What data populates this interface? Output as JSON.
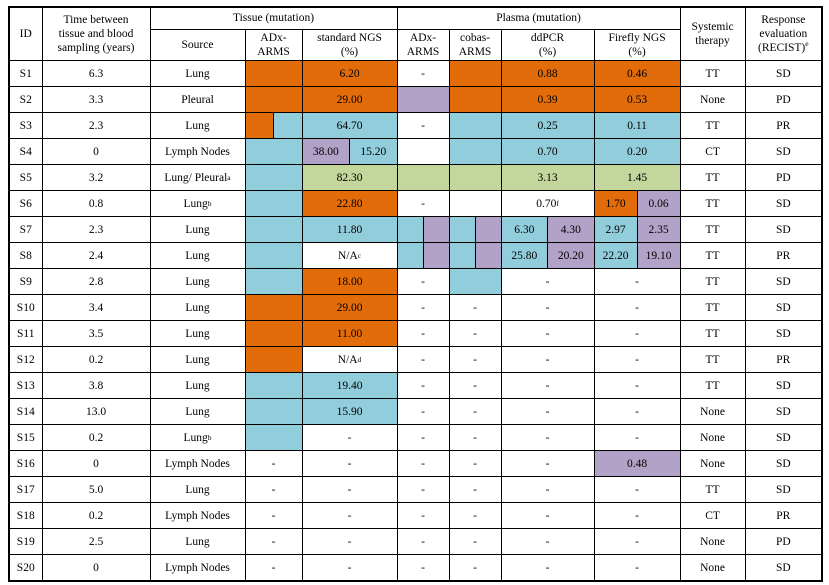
{
  "colors": {
    "orange": "#E36C0A",
    "blue": "#92CDDC",
    "purple": "#B2A2C7",
    "green": "#C3D69B",
    "white": "#FFFFFF"
  },
  "header": {
    "id": "ID",
    "time": "Time between\ntissue and blood\nsampling (years)",
    "tissue_group": "Tissue (mutation)",
    "plasma_group": "Plasma (mutation)",
    "source": "Source",
    "tissue_adx": "ADx-\nARMS",
    "std_ngs": "standard NGS\n(%)",
    "plasma_adx": "ADx-\nARMS",
    "cobas": "cobas-\nARMS",
    "ddpcr": "ddPCR\n(%)",
    "firefly": "Firefly NGS\n(%)",
    "therapy": "Systemic\ntherapy",
    "response": "Response\nevaluation\n(RECIST)^e"
  },
  "rows": [
    {
      "id": "S1",
      "time": "6.3",
      "source": "Lung",
      "tissue_adx": [
        {
          "t": "",
          "c": "orange"
        }
      ],
      "std_ngs": [
        {
          "t": "6.20",
          "c": "orange"
        }
      ],
      "p_adx": [
        {
          "t": "-",
          "c": "white"
        }
      ],
      "cobas": [
        {
          "t": "",
          "c": "orange"
        }
      ],
      "ddpcr": [
        {
          "t": "0.88",
          "c": "orange"
        }
      ],
      "firefly": [
        {
          "t": "0.46",
          "c": "orange"
        }
      ],
      "therapy": "TT",
      "response": "SD"
    },
    {
      "id": "S2",
      "time": "3.3",
      "source": "Pleural",
      "tissue_adx": [
        {
          "t": "",
          "c": "orange"
        }
      ],
      "std_ngs": [
        {
          "t": "29.00",
          "c": "orange"
        }
      ],
      "p_adx": [
        {
          "t": "",
          "c": "purple"
        }
      ],
      "cobas": [
        {
          "t": "",
          "c": "orange"
        }
      ],
      "ddpcr": [
        {
          "t": "0.39",
          "c": "orange"
        }
      ],
      "firefly": [
        {
          "t": "0.53",
          "c": "orange"
        }
      ],
      "therapy": "None",
      "response": "PD"
    },
    {
      "id": "S3",
      "time": "2.3",
      "source": "Lung",
      "tissue_adx": [
        {
          "t": "",
          "c": "orange"
        },
        {
          "t": "",
          "c": "blue"
        }
      ],
      "std_ngs": [
        {
          "t": "64.70",
          "c": "blue"
        }
      ],
      "p_adx": [
        {
          "t": "-",
          "c": "white"
        }
      ],
      "cobas": [
        {
          "t": "",
          "c": "blue"
        }
      ],
      "ddpcr": [
        {
          "t": "0.25",
          "c": "blue"
        }
      ],
      "firefly": [
        {
          "t": "0.11",
          "c": "blue"
        }
      ],
      "therapy": "TT",
      "response": "PR"
    },
    {
      "id": "S4",
      "time": "0",
      "source": "Lymph Nodes",
      "tissue_adx": [
        {
          "t": "",
          "c": "blue"
        }
      ],
      "std_ngs": [
        {
          "t": "38.00",
          "c": "purple"
        },
        {
          "t": "15.20",
          "c": "blue"
        }
      ],
      "p_adx": [
        {
          "t": "",
          "c": "white"
        }
      ],
      "cobas": [
        {
          "t": "",
          "c": "blue"
        }
      ],
      "ddpcr": [
        {
          "t": "0.70",
          "c": "blue"
        }
      ],
      "firefly": [
        {
          "t": "0.20",
          "c": "blue"
        }
      ],
      "therapy": "CT",
      "response": "SD"
    },
    {
      "id": "S5",
      "time": "3.2",
      "source": "Lung/ Pleural^a",
      "tissue_adx": [
        {
          "t": "",
          "c": "blue"
        }
      ],
      "std_ngs": [
        {
          "t": "82.30",
          "c": "green"
        }
      ],
      "p_adx": [
        {
          "t": "",
          "c": "green"
        }
      ],
      "cobas": [
        {
          "t": "",
          "c": "green"
        }
      ],
      "ddpcr": [
        {
          "t": "3.13",
          "c": "green"
        }
      ],
      "firefly": [
        {
          "t": "1.45",
          "c": "green"
        }
      ],
      "therapy": "TT",
      "response": "PD"
    },
    {
      "id": "S6",
      "time": "0.8",
      "source": "Lung^b",
      "tissue_adx": [
        {
          "t": "",
          "c": "blue"
        }
      ],
      "std_ngs": [
        {
          "t": "22.80",
          "c": "orange"
        }
      ],
      "p_adx": [
        {
          "t": "-",
          "c": "white"
        }
      ],
      "cobas": [
        {
          "t": "",
          "c": "white"
        }
      ],
      "ddpcr": [
        {
          "t": "0.70^f",
          "c": "white"
        }
      ],
      "firefly": [
        {
          "t": "1.70",
          "c": "orange"
        },
        {
          "t": "0.06",
          "c": "purple"
        }
      ],
      "therapy": "TT",
      "response": "SD"
    },
    {
      "id": "S7",
      "time": "2.3",
      "source": "Lung",
      "tissue_adx": [
        {
          "t": "",
          "c": "blue"
        }
      ],
      "std_ngs": [
        {
          "t": "11.80",
          "c": "blue"
        }
      ],
      "p_adx": [
        {
          "t": "",
          "c": "blue"
        },
        {
          "t": "",
          "c": "purple"
        }
      ],
      "cobas": [
        {
          "t": "",
          "c": "blue"
        },
        {
          "t": "",
          "c": "purple"
        }
      ],
      "ddpcr": [
        {
          "t": "6.30",
          "c": "blue"
        },
        {
          "t": "4.30",
          "c": "purple"
        }
      ],
      "firefly": [
        {
          "t": "2.97",
          "c": "blue"
        },
        {
          "t": "2.35",
          "c": "purple"
        }
      ],
      "therapy": "TT",
      "response": "SD"
    },
    {
      "id": "S8",
      "time": "2.4",
      "source": "Lung",
      "tissue_adx": [
        {
          "t": "",
          "c": "blue"
        }
      ],
      "std_ngs": [
        {
          "t": "N/A^c",
          "c": "white"
        }
      ],
      "p_adx": [
        {
          "t": "",
          "c": "blue"
        },
        {
          "t": "",
          "c": "purple"
        }
      ],
      "cobas": [
        {
          "t": "",
          "c": "blue"
        },
        {
          "t": "",
          "c": "purple"
        }
      ],
      "ddpcr": [
        {
          "t": "25.80",
          "c": "blue"
        },
        {
          "t": "20.20",
          "c": "purple"
        }
      ],
      "firefly": [
        {
          "t": "22.20",
          "c": "blue"
        },
        {
          "t": "19.10",
          "c": "purple"
        }
      ],
      "therapy": "TT",
      "response": "PR"
    },
    {
      "id": "S9",
      "time": "2.8",
      "source": "Lung",
      "tissue_adx": [
        {
          "t": "",
          "c": "blue"
        }
      ],
      "std_ngs": [
        {
          "t": "18.00",
          "c": "orange"
        }
      ],
      "p_adx": [
        {
          "t": "-",
          "c": "white"
        }
      ],
      "cobas": [
        {
          "t": "",
          "c": "blue"
        }
      ],
      "ddpcr": [
        {
          "t": "-",
          "c": "white"
        }
      ],
      "firefly": [
        {
          "t": "-",
          "c": "white"
        }
      ],
      "therapy": "TT",
      "response": "SD"
    },
    {
      "id": "S10",
      "time": "3.4",
      "source": "Lung",
      "tissue_adx": [
        {
          "t": "",
          "c": "orange"
        }
      ],
      "std_ngs": [
        {
          "t": "29.00",
          "c": "orange"
        }
      ],
      "p_adx": [
        {
          "t": "-",
          "c": "white"
        }
      ],
      "cobas": [
        {
          "t": "-",
          "c": "white"
        }
      ],
      "ddpcr": [
        {
          "t": "-",
          "c": "white"
        }
      ],
      "firefly": [
        {
          "t": "-",
          "c": "white"
        }
      ],
      "therapy": "TT",
      "response": "SD"
    },
    {
      "id": "S11",
      "time": "3.5",
      "source": "Lung",
      "tissue_adx": [
        {
          "t": "",
          "c": "orange"
        }
      ],
      "std_ngs": [
        {
          "t": "11.00",
          "c": "orange"
        }
      ],
      "p_adx": [
        {
          "t": "-",
          "c": "white"
        }
      ],
      "cobas": [
        {
          "t": "-",
          "c": "white"
        }
      ],
      "ddpcr": [
        {
          "t": "-",
          "c": "white"
        }
      ],
      "firefly": [
        {
          "t": "-",
          "c": "white"
        }
      ],
      "therapy": "TT",
      "response": "SD"
    },
    {
      "id": "S12",
      "time": "0.2",
      "source": "Lung",
      "tissue_adx": [
        {
          "t": "",
          "c": "orange"
        }
      ],
      "std_ngs": [
        {
          "t": "N/A^d",
          "c": "white"
        }
      ],
      "p_adx": [
        {
          "t": "-",
          "c": "white"
        }
      ],
      "cobas": [
        {
          "t": "-",
          "c": "white"
        }
      ],
      "ddpcr": [
        {
          "t": "-",
          "c": "white"
        }
      ],
      "firefly": [
        {
          "t": "-",
          "c": "white"
        }
      ],
      "therapy": "TT",
      "response": "PR"
    },
    {
      "id": "S13",
      "time": "3.8",
      "source": "Lung",
      "tissue_adx": [
        {
          "t": "",
          "c": "blue"
        }
      ],
      "std_ngs": [
        {
          "t": "19.40",
          "c": "blue"
        }
      ],
      "p_adx": [
        {
          "t": "-",
          "c": "white"
        }
      ],
      "cobas": [
        {
          "t": "-",
          "c": "white"
        }
      ],
      "ddpcr": [
        {
          "t": "-",
          "c": "white"
        }
      ],
      "firefly": [
        {
          "t": "-",
          "c": "white"
        }
      ],
      "therapy": "TT",
      "response": "SD"
    },
    {
      "id": "S14",
      "time": "13.0",
      "source": "Lung",
      "tissue_adx": [
        {
          "t": "",
          "c": "blue"
        }
      ],
      "std_ngs": [
        {
          "t": "15.90",
          "c": "blue"
        }
      ],
      "p_adx": [
        {
          "t": "-",
          "c": "white"
        }
      ],
      "cobas": [
        {
          "t": "-",
          "c": "white"
        }
      ],
      "ddpcr": [
        {
          "t": "-",
          "c": "white"
        }
      ],
      "firefly": [
        {
          "t": "-",
          "c": "white"
        }
      ],
      "therapy": "None",
      "response": "SD"
    },
    {
      "id": "S15",
      "time": "0.2",
      "source": "Lung^b",
      "tissue_adx": [
        {
          "t": "",
          "c": "blue"
        }
      ],
      "std_ngs": [
        {
          "t": "-",
          "c": "white"
        }
      ],
      "p_adx": [
        {
          "t": "-",
          "c": "white"
        }
      ],
      "cobas": [
        {
          "t": "-",
          "c": "white"
        }
      ],
      "ddpcr": [
        {
          "t": "-",
          "c": "white"
        }
      ],
      "firefly": [
        {
          "t": "-",
          "c": "white"
        }
      ],
      "therapy": "None",
      "response": "SD"
    },
    {
      "id": "S16",
      "time": "0",
      "source": "Lymph Nodes",
      "tissue_adx": [
        {
          "t": "-",
          "c": "white"
        }
      ],
      "std_ngs": [
        {
          "t": "-",
          "c": "white"
        }
      ],
      "p_adx": [
        {
          "t": "-",
          "c": "white"
        }
      ],
      "cobas": [
        {
          "t": "-",
          "c": "white"
        }
      ],
      "ddpcr": [
        {
          "t": "-",
          "c": "white"
        }
      ],
      "firefly": [
        {
          "t": "0.48",
          "c": "purple"
        }
      ],
      "therapy": "None",
      "response": "SD"
    },
    {
      "id": "S17",
      "time": "5.0",
      "source": "Lung",
      "tissue_adx": [
        {
          "t": "-",
          "c": "white"
        }
      ],
      "std_ngs": [
        {
          "t": "-",
          "c": "white"
        }
      ],
      "p_adx": [
        {
          "t": "-",
          "c": "white"
        }
      ],
      "cobas": [
        {
          "t": "-",
          "c": "white"
        }
      ],
      "ddpcr": [
        {
          "t": "-",
          "c": "white"
        }
      ],
      "firefly": [
        {
          "t": "-",
          "c": "white"
        }
      ],
      "therapy": "TT",
      "response": "SD"
    },
    {
      "id": "S18",
      "time": "0.2",
      "source": "Lymph Nodes",
      "tissue_adx": [
        {
          "t": "-",
          "c": "white"
        }
      ],
      "std_ngs": [
        {
          "t": "-",
          "c": "white"
        }
      ],
      "p_adx": [
        {
          "t": "-",
          "c": "white"
        }
      ],
      "cobas": [
        {
          "t": "-",
          "c": "white"
        }
      ],
      "ddpcr": [
        {
          "t": "-",
          "c": "white"
        }
      ],
      "firefly": [
        {
          "t": "-",
          "c": "white"
        }
      ],
      "therapy": "CT",
      "response": "PR"
    },
    {
      "id": "S19",
      "time": "2.5",
      "source": "Lung",
      "tissue_adx": [
        {
          "t": "-",
          "c": "white"
        }
      ],
      "std_ngs": [
        {
          "t": "-",
          "c": "white"
        }
      ],
      "p_adx": [
        {
          "t": "-",
          "c": "white"
        }
      ],
      "cobas": [
        {
          "t": "-",
          "c": "white"
        }
      ],
      "ddpcr": [
        {
          "t": "-",
          "c": "white"
        }
      ],
      "firefly": [
        {
          "t": "-",
          "c": "white"
        }
      ],
      "therapy": "None",
      "response": "PD"
    },
    {
      "id": "S20",
      "time": "0",
      "source": "Lymph Nodes",
      "tissue_adx": [
        {
          "t": "-",
          "c": "white"
        }
      ],
      "std_ngs": [
        {
          "t": "-",
          "c": "white"
        }
      ],
      "p_adx": [
        {
          "t": "-",
          "c": "white"
        }
      ],
      "cobas": [
        {
          "t": "-",
          "c": "white"
        }
      ],
      "ddpcr": [
        {
          "t": "-",
          "c": "white"
        }
      ],
      "firefly": [
        {
          "t": "-",
          "c": "white"
        }
      ],
      "therapy": "None",
      "response": "SD"
    }
  ]
}
